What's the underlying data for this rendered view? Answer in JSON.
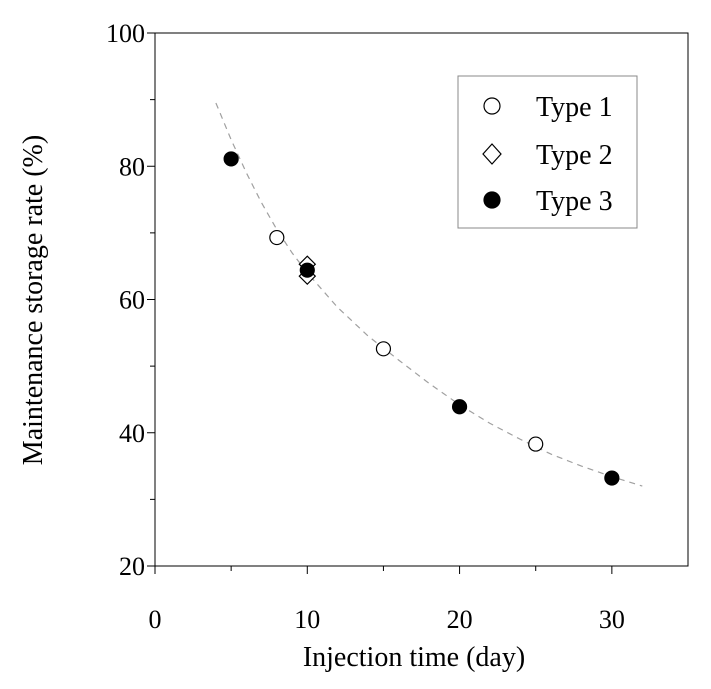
{
  "chart_data": {
    "type": "scatter",
    "xlabel": "Injection time (day)",
    "ylabel": "Maintenance storage rate (%)",
    "xlim": [
      0,
      35
    ],
    "ylim": [
      20,
      100
    ],
    "xticks": [
      0,
      10,
      20,
      30
    ],
    "yticks": [
      20,
      40,
      60,
      80,
      100
    ],
    "x_minor_ticks": [
      5,
      15,
      25
    ],
    "y_minor_ticks": [
      30,
      50,
      70,
      90
    ],
    "legend_position": "top-right",
    "series": [
      {
        "name": "Type 1",
        "marker": "open-circle",
        "points": [
          {
            "x": 8,
            "y": 69.3
          },
          {
            "x": 15,
            "y": 52.6
          },
          {
            "x": 25,
            "y": 38.3
          }
        ]
      },
      {
        "name": "Type 2",
        "marker": "open-diamond",
        "points": [
          {
            "x": 10,
            "y": 65.3
          },
          {
            "x": 10,
            "y": 63.5
          }
        ]
      },
      {
        "name": "Type 3",
        "marker": "filled-circle",
        "points": [
          {
            "x": 5,
            "y": 81.1
          },
          {
            "x": 10,
            "y": 64.4
          },
          {
            "x": 20,
            "y": 43.9
          },
          {
            "x": 30,
            "y": 33.2
          }
        ]
      }
    ],
    "fit_curve": {
      "style": "dashed",
      "color": "#a0a0a0",
      "points": [
        {
          "x": 4,
          "y": 89.5
        },
        {
          "x": 5,
          "y": 84.0
        },
        {
          "x": 6,
          "y": 79.0
        },
        {
          "x": 7,
          "y": 74.5
        },
        {
          "x": 8,
          "y": 70.5
        },
        {
          "x": 9,
          "y": 67.0
        },
        {
          "x": 10,
          "y": 64.0
        },
        {
          "x": 12,
          "y": 58.8
        },
        {
          "x": 14,
          "y": 54.5
        },
        {
          "x": 16,
          "y": 50.9
        },
        {
          "x": 18,
          "y": 47.4
        },
        {
          "x": 20,
          "y": 44.2
        },
        {
          "x": 22,
          "y": 41.4
        },
        {
          "x": 24,
          "y": 39.0
        },
        {
          "x": 26,
          "y": 36.8
        },
        {
          "x": 28,
          "y": 35.0
        },
        {
          "x": 30,
          "y": 33.4
        },
        {
          "x": 32,
          "y": 32.0
        }
      ]
    }
  }
}
